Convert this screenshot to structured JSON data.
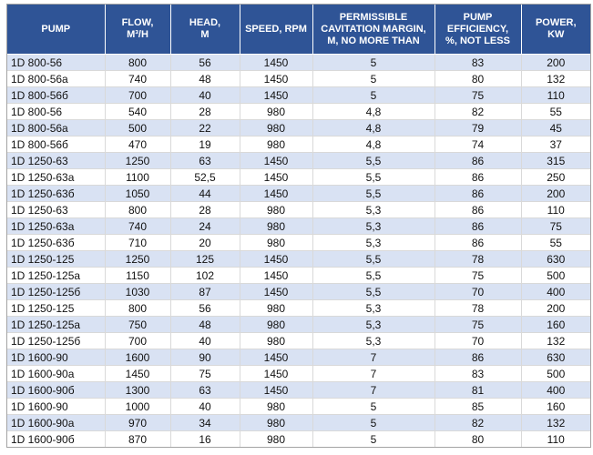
{
  "table": {
    "columns": [
      "PUMP",
      "FLOW,\nM³/H",
      "HEAD,\nM",
      "SPEED, RPM",
      "PERMISSIBLE\nCAVITATION MARGIN,\nM, NO MORE THAN",
      "PUMP\nEFFICIENCY,\n%, NOT LESS",
      "POWER,\nKW"
    ],
    "column_names": [
      "pump",
      "flow",
      "head",
      "speed",
      "cavitation-margin",
      "efficiency",
      "power"
    ],
    "rows": [
      [
        "1D 800-56",
        "800",
        "56",
        "1450",
        "5",
        "83",
        "200"
      ],
      [
        "1D 800-56a",
        "740",
        "48",
        "1450",
        "5",
        "80",
        "132"
      ],
      [
        "1D 800-56б",
        "700",
        "40",
        "1450",
        "5",
        "75",
        "110"
      ],
      [
        "1D 800-56",
        "540",
        "28",
        "980",
        "4,8",
        "82",
        "55"
      ],
      [
        "1D 800-56a",
        "500",
        "22",
        "980",
        "4,8",
        "79",
        "45"
      ],
      [
        "1D 800-56б",
        "470",
        "19",
        "980",
        "4,8",
        "74",
        "37"
      ],
      [
        "1D 1250-63",
        "1250",
        "63",
        "1450",
        "5,5",
        "86",
        "315"
      ],
      [
        "1D 1250-63a",
        "1100",
        "52,5",
        "1450",
        "5,5",
        "86",
        "250"
      ],
      [
        "1D 1250-63б",
        "1050",
        "44",
        "1450",
        "5,5",
        "86",
        "200"
      ],
      [
        "1D 1250-63",
        "800",
        "28",
        "980",
        "5,3",
        "86",
        "110"
      ],
      [
        "1D 1250-63a",
        "740",
        "24",
        "980",
        "5,3",
        "86",
        "75"
      ],
      [
        "1D 1250-63б",
        "710",
        "20",
        "980",
        "5,3",
        "86",
        "55"
      ],
      [
        "1D 1250-125",
        "1250",
        "125",
        "1450",
        "5,5",
        "78",
        "630"
      ],
      [
        "1D 1250-125a",
        "1150",
        "102",
        "1450",
        "5,5",
        "75",
        "500"
      ],
      [
        "1D 1250-125б",
        "1030",
        "87",
        "1450",
        "5,5",
        "70",
        "400"
      ],
      [
        "1D 1250-125",
        "800",
        "56",
        "980",
        "5,3",
        "78",
        "200"
      ],
      [
        "1D 1250-125a",
        "750",
        "48",
        "980",
        "5,3",
        "75",
        "160"
      ],
      [
        "1D 1250-125б",
        "700",
        "40",
        "980",
        "5,3",
        "70",
        "132"
      ],
      [
        "1D 1600-90",
        "1600",
        "90",
        "1450",
        "7",
        "86",
        "630"
      ],
      [
        "1D 1600-90a",
        "1450",
        "75",
        "1450",
        "7",
        "83",
        "500"
      ],
      [
        "1D 1600-90б",
        "1300",
        "63",
        "1450",
        "7",
        "81",
        "400"
      ],
      [
        "1D 1600-90",
        "1000",
        "40",
        "980",
        "5",
        "85",
        "160"
      ],
      [
        "1D 1600-90a",
        "970",
        "34",
        "980",
        "5",
        "82",
        "132"
      ],
      [
        "1D 1600-90б",
        "870",
        "16",
        "980",
        "5",
        "80",
        "110"
      ]
    ]
  },
  "colors": {
    "header_bg": "#2F5496",
    "header_text": "#FFFFFF",
    "row_alt_bg": "#D9E2F3",
    "row_bg": "#FFFFFF",
    "inner_border": "#D9D9D9",
    "outer_border": "#A3A3A3"
  }
}
